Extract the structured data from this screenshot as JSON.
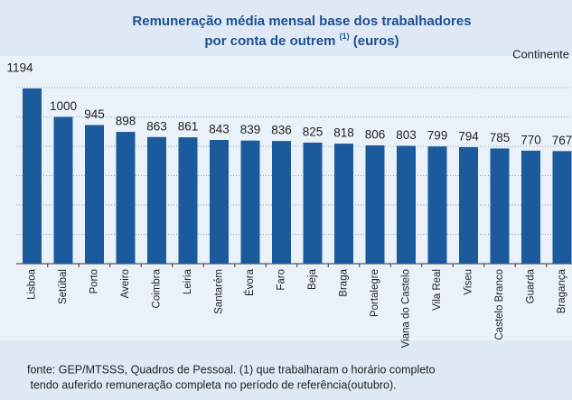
{
  "chart_data": {
    "type": "bar",
    "title": {
      "line1": "Remuneração média mensal base dos trabalhadores",
      "line2": "por conta de outrem",
      "superscript": "(1)",
      "line2_end": "(euros)"
    },
    "subtitle": "Continente",
    "categories": [
      "Lisboa",
      "Setúbal",
      "Porto",
      "Aveiro",
      "Coimbra",
      "Leiria",
      "Santarém",
      "Évora",
      "Faro",
      "Beja",
      "Braga",
      "Portalegre",
      "Viana do Castelo",
      "Vila Real",
      "Viseu",
      "Castelo Branco",
      "Guarda",
      "Bragança"
    ],
    "values": [
      1194,
      1000,
      945,
      898,
      863,
      861,
      843,
      839,
      836,
      825,
      818,
      806,
      803,
      799,
      794,
      785,
      770,
      767
    ],
    "color": "#1b5a9c",
    "ylim": [
      0,
      1200
    ],
    "yticks": [
      0,
      200,
      400,
      600,
      800,
      1000,
      1200
    ],
    "grid": true,
    "source": [
      "fonte: GEP/MTSSS, Quadros de Pessoal.  (1) que trabalharam o horário completo",
      " tendo auferido remuneração completa no período de referência(outubro)."
    ]
  }
}
